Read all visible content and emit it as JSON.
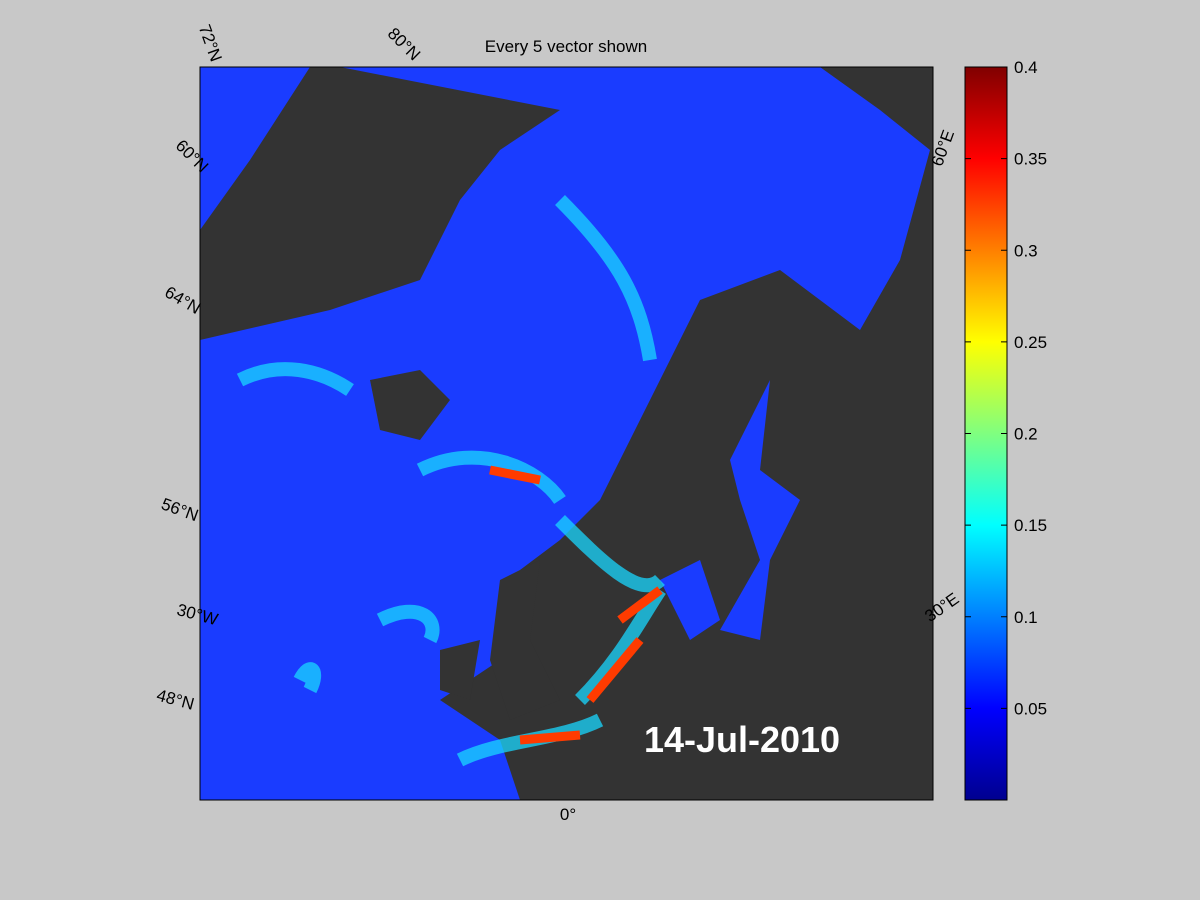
{
  "title": "Every 5 vector shown",
  "date": "14-Jul-2010",
  "graticule_labels": [
    "72°N",
    "80°N",
    "60°E",
    "60°N",
    "64°N",
    "56°N",
    "30°W",
    "48°N",
    "0°",
    "30°E"
  ],
  "colorbar": {
    "lim": [
      0,
      0.4
    ],
    "ticks": [
      0.05,
      0.1,
      0.15,
      0.2,
      0.25,
      0.3,
      0.35,
      0.4
    ]
  }
}
